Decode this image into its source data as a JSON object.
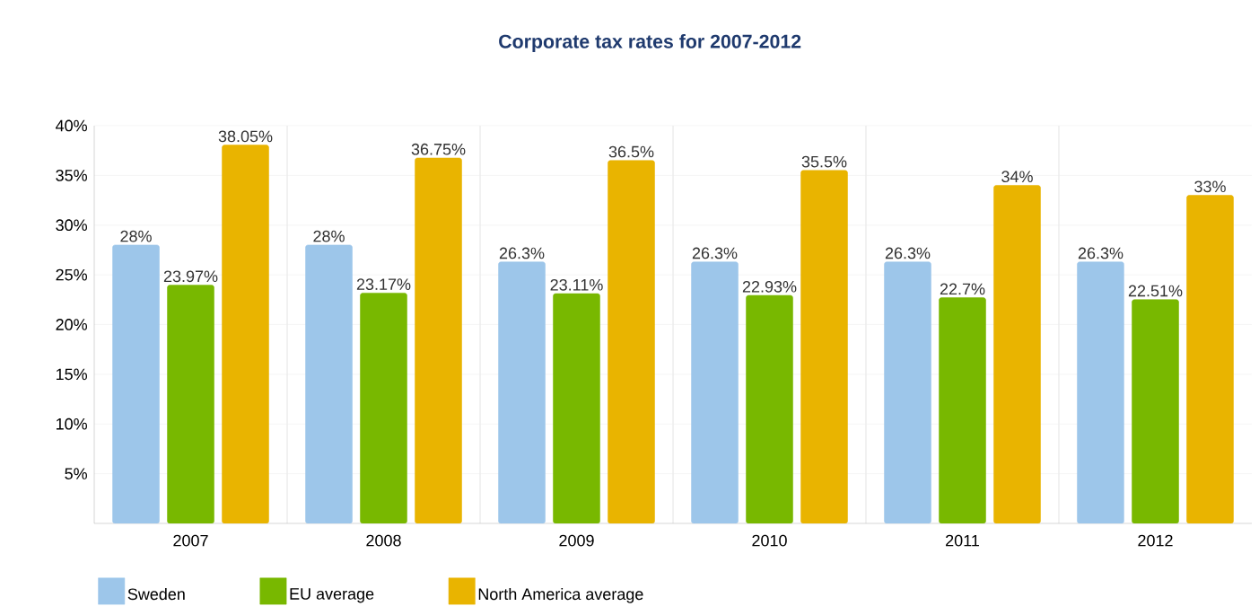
{
  "chart_data": {
    "type": "bar",
    "title": "Corporate tax rates for 2007-2012",
    "categories": [
      "2007",
      "2008",
      "2009",
      "2010",
      "2011",
      "2012"
    ],
    "series": [
      {
        "name": "Sweden",
        "color": "#9dc6ea",
        "values": [
          28,
          28,
          26.3,
          26.3,
          26.3,
          26.3
        ],
        "value_labels": [
          "28%",
          "28%",
          "26.3%",
          "26.3%",
          "26.3%",
          "26.3%"
        ]
      },
      {
        "name": "EU average",
        "color": "#78b800",
        "values": [
          23.97,
          23.17,
          23.11,
          22.93,
          22.7,
          22.51
        ],
        "value_labels": [
          "23.97%",
          "23.17%",
          "23.11%",
          "22.93%",
          "22.7%",
          "22.51%"
        ]
      },
      {
        "name": "North America average",
        "color": "#e9b400",
        "values": [
          38.05,
          36.75,
          36.5,
          35.5,
          34,
          33
        ],
        "value_labels": [
          "38.05%",
          "36.75%",
          "36.5%",
          "35.5%",
          "34%",
          "33%"
        ]
      }
    ],
    "ylim": [
      0,
      40
    ],
    "yticks": [
      {
        "value": 5,
        "label": "5%"
      },
      {
        "value": 10,
        "label": "10%"
      },
      {
        "value": 15,
        "label": "15%"
      },
      {
        "value": 20,
        "label": "20%"
      },
      {
        "value": 25,
        "label": "25%"
      },
      {
        "value": 30,
        "label": "30%"
      },
      {
        "value": 35,
        "label": "35%"
      },
      {
        "value": 40,
        "label": "40%"
      }
    ],
    "grid": "y",
    "legend": "bottom"
  }
}
